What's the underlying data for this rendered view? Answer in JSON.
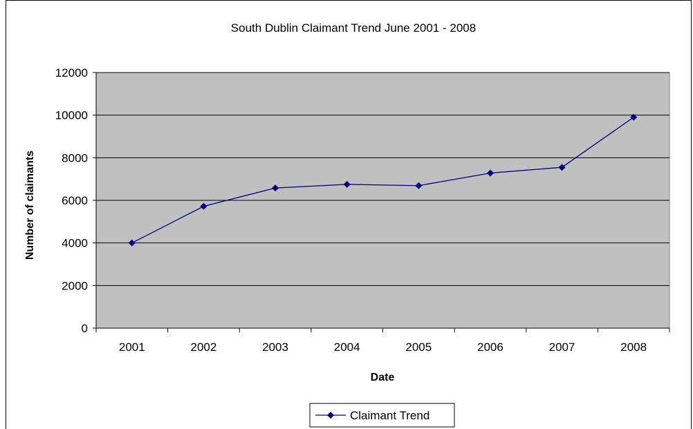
{
  "chart_data": {
    "type": "line",
    "title": "South Dublin Claimant Trend June 2001 - 2008",
    "xlabel": "Date",
    "ylabel": "Number of claimants",
    "categories": [
      "2001",
      "2002",
      "2003",
      "2004",
      "2005",
      "2006",
      "2007",
      "2008"
    ],
    "series": [
      {
        "name": "Claimant Trend",
        "values": [
          4000,
          5720,
          6580,
          6750,
          6690,
          7280,
          7550,
          9900
        ],
        "color": "#000080"
      }
    ],
    "ylim": [
      0,
      12000
    ],
    "yticks": [
      "0",
      "2000",
      "4000",
      "6000",
      "8000",
      "10000",
      "12000"
    ],
    "grid": true,
    "plot_background": "#c0c0c0",
    "legend_position": "bottom",
    "marker": "diamond"
  }
}
